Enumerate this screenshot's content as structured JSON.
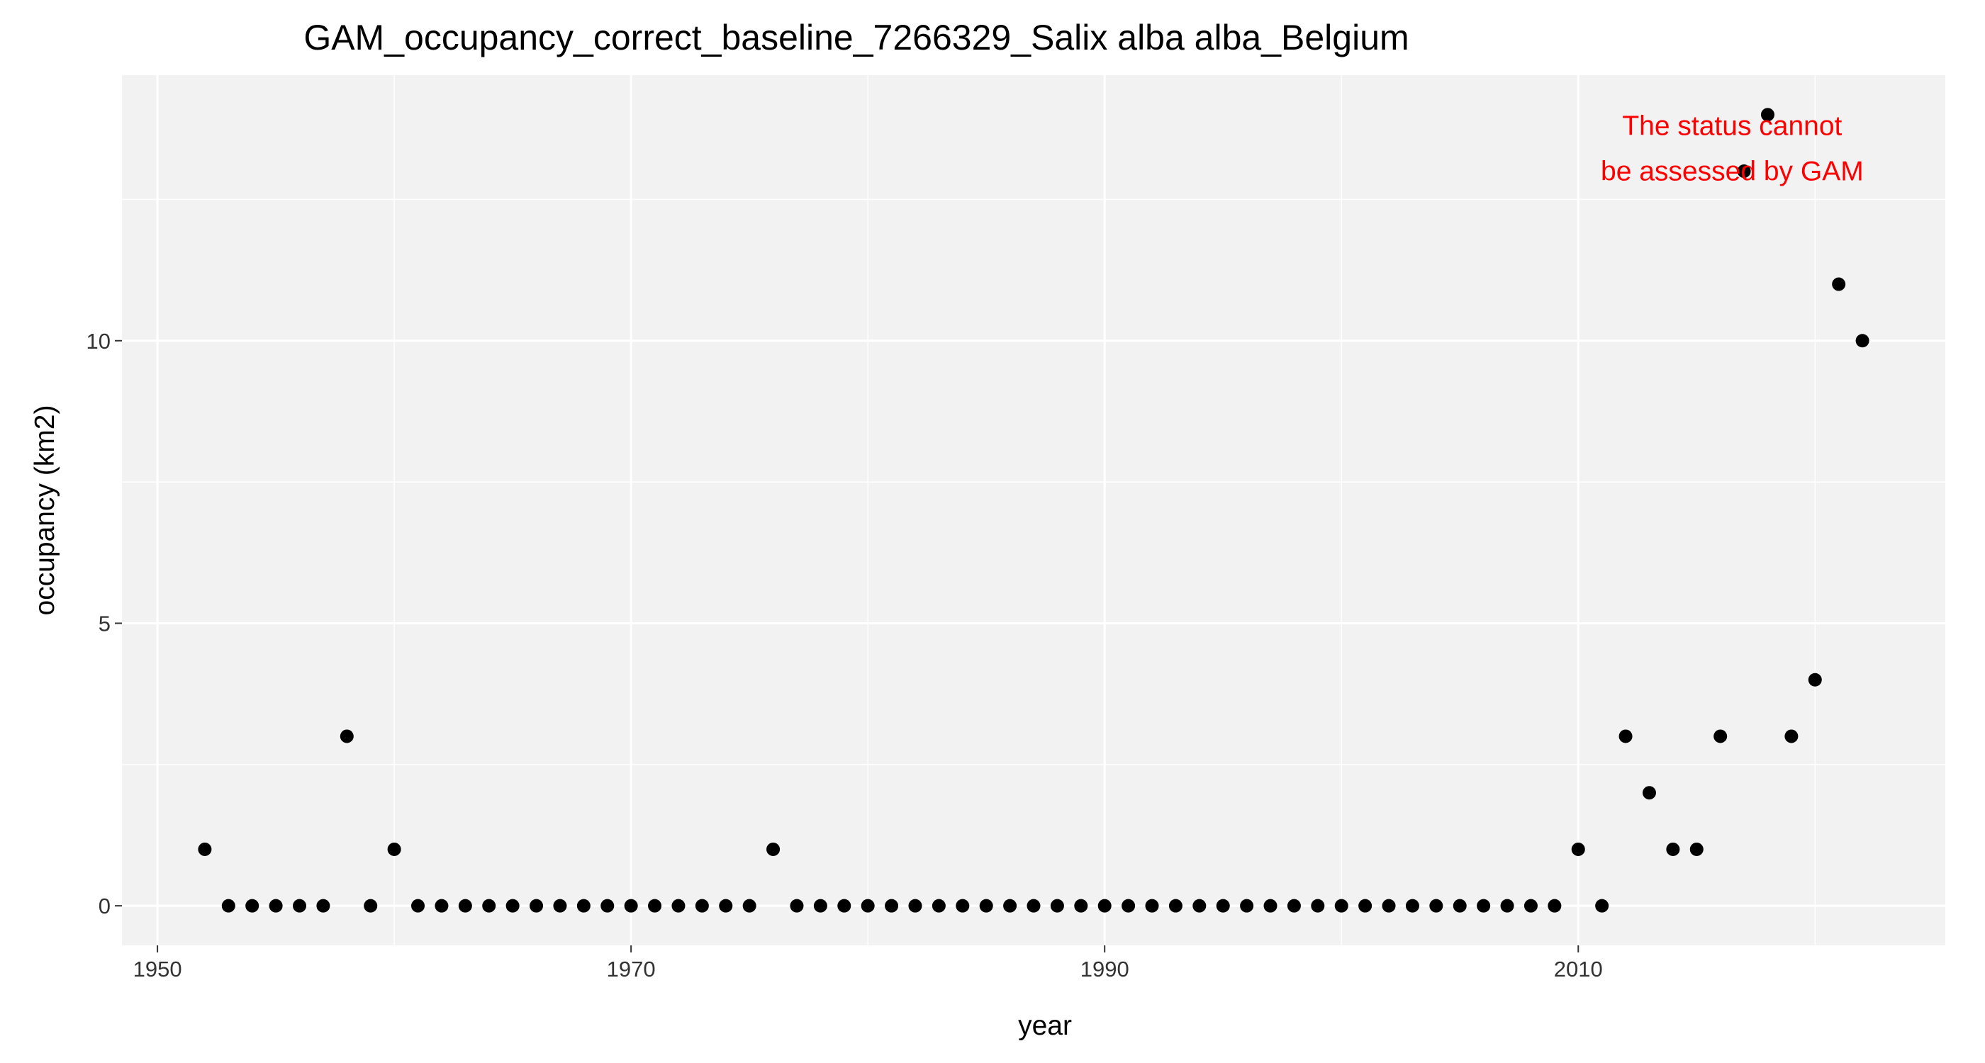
{
  "chart_data": {
    "type": "scatter",
    "title": "GAM_occupancy_correct_baseline_7266329_Salix alba alba_Belgium",
    "xlabel": "year",
    "ylabel": "occupancy (km2)",
    "xlim": [
      1948.5,
      2025.5
    ],
    "ylim": [
      -0.7,
      14.7
    ],
    "x_ticks": [
      1950,
      1970,
      1990,
      2010
    ],
    "x_minor_ticks": [
      1960,
      1980,
      2000,
      2020
    ],
    "y_ticks": [
      0,
      5,
      10
    ],
    "y_minor_ticks": [
      2.5,
      7.5,
      12.5
    ],
    "grid": true,
    "legend": "none",
    "colors": {
      "panel_background": "#f2f2f2",
      "grid": "#ffffff",
      "points": "#000000",
      "annotation": "#ff0000"
    },
    "annotation": {
      "lines": [
        "The status cannot",
        "be assessed by GAM"
      ],
      "x": 2016.5,
      "y": 13.4,
      "color": "#ff0000"
    },
    "series": [
      {
        "x": [
          1952,
          1953,
          1954,
          1955,
          1956,
          1957,
          1958,
          1959,
          1960,
          1961,
          1962,
          1963,
          1964,
          1965,
          1966,
          1967,
          1968,
          1969,
          1970,
          1971,
          1972,
          1973,
          1974,
          1975,
          1976,
          1977,
          1978,
          1979,
          1980,
          1981,
          1982,
          1983,
          1984,
          1985,
          1986,
          1987,
          1988,
          1989,
          1990,
          1991,
          1992,
          1993,
          1994,
          1995,
          1996,
          1997,
          1998,
          1999,
          2000,
          2001,
          2002,
          2003,
          2004,
          2005,
          2006,
          2007,
          2008,
          2009,
          2010,
          2011,
          2012,
          2013,
          2014,
          2015,
          2016,
          2017,
          2018,
          2019,
          2020,
          2021,
          2022
        ],
        "y": [
          1,
          0,
          0,
          0,
          0,
          0,
          3,
          0,
          1,
          0,
          0,
          0,
          0,
          0,
          0,
          0,
          0,
          0,
          0,
          0,
          0,
          0,
          0,
          0,
          1,
          0,
          0,
          0,
          0,
          0,
          0,
          0,
          0,
          0,
          0,
          0,
          0,
          0,
          0,
          0,
          0,
          0,
          0,
          0,
          0,
          0,
          0,
          0,
          0,
          0,
          0,
          0,
          0,
          0,
          0,
          0,
          0,
          0,
          1,
          0,
          3,
          2,
          1,
          1,
          3,
          13,
          14,
          3,
          4,
          11,
          10
        ]
      }
    ]
  }
}
